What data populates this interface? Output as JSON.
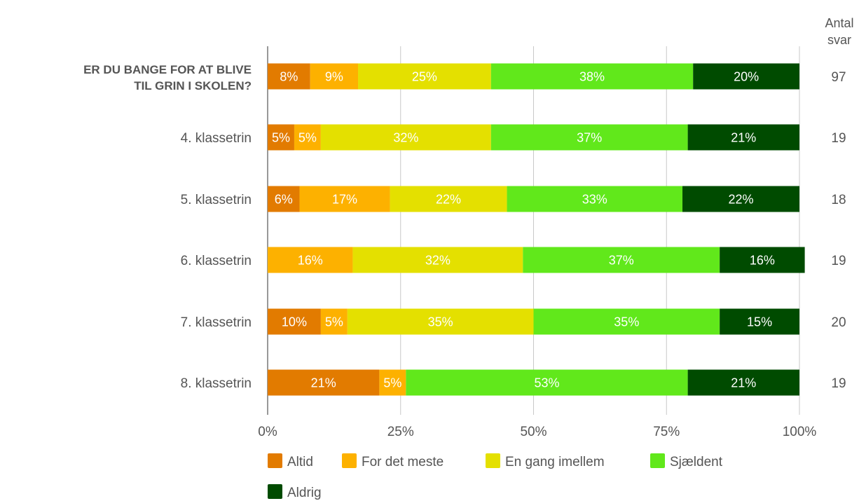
{
  "chart_data": {
    "type": "bar",
    "orientation": "horizontal",
    "stacked": true,
    "categories": [
      "ER DU BANGE FOR AT BLIVE TIL GRIN I SKOLEN?",
      "4. klassetrin",
      "5. klassetrin",
      "6. klassetrin",
      "7. klassetrin",
      "8. klassetrin"
    ],
    "series": [
      {
        "name": "Altid",
        "color": "#e27b00",
        "values": [
          8,
          5,
          6,
          0,
          10,
          21
        ]
      },
      {
        "name": "For det meste",
        "color": "#fdb100",
        "values": [
          9,
          5,
          17,
          16,
          5,
          5
        ]
      },
      {
        "name": "En gang imellem",
        "color": "#e4e000",
        "values": [
          25,
          32,
          22,
          32,
          35,
          0
        ]
      },
      {
        "name": "Sjældent",
        "color": "#61e81b",
        "values": [
          38,
          37,
          33,
          37,
          35,
          53
        ]
      },
      {
        "name": "Aldrig",
        "color": "#004b00",
        "values": [
          20,
          21,
          22,
          16,
          15,
          21
        ]
      }
    ],
    "percent_labels": [
      [
        "8%",
        "9%",
        "25%",
        "38%",
        "20%"
      ],
      [
        "5%",
        "5%",
        "32%",
        "37%",
        "21%"
      ],
      [
        "6%",
        "17%",
        "22%",
        "33%",
        "22%"
      ],
      [
        "",
        "16%",
        "32%",
        "37%",
        "16%"
      ],
      [
        "10%",
        "5%",
        "35%",
        "35%",
        "15%"
      ],
      [
        "21%",
        "5%",
        "",
        "53%",
        "21%"
      ]
    ],
    "counts_header": "Antal svar",
    "counts": [
      97,
      19,
      18,
      19,
      20,
      19
    ],
    "xlim": [
      0,
      100
    ],
    "x_ticks": [
      "0%",
      "25%",
      "50%",
      "75%",
      "100%"
    ],
    "grid": true,
    "legend_position": "bottom"
  }
}
